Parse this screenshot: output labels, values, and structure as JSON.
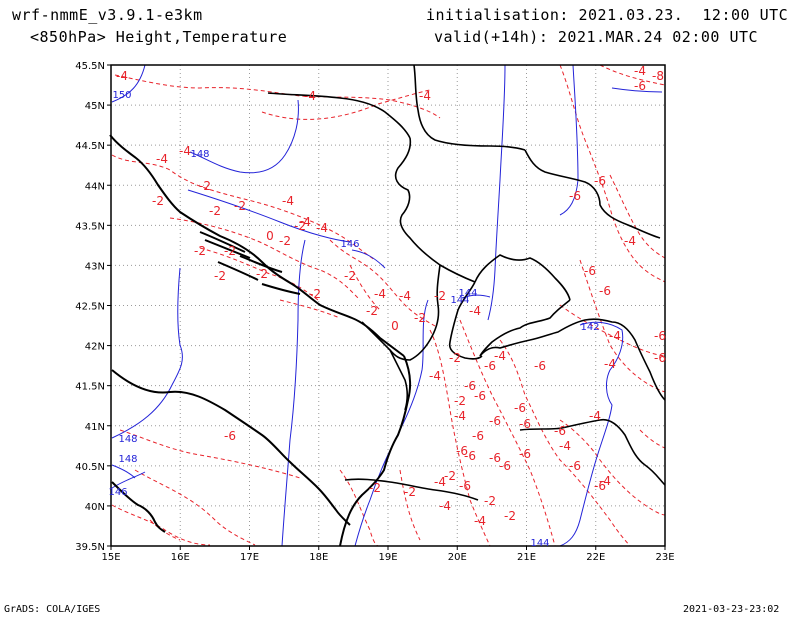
{
  "header": {
    "model": "wrf-nmmE_v3.9.1-e3km",
    "level": "<850hPa> Height,Temperature",
    "initialisation": "initialisation: 2021.03.23.  12:00 UTC",
    "valid": "valid(+14h): 2021.MAR.24 02:00 UTC"
  },
  "axes": {
    "lat_labels": [
      "45.5N",
      "45N",
      "44.5N",
      "44N",
      "43.5N",
      "43N",
      "42.5N",
      "42N",
      "41.5N",
      "41N",
      "40.5N",
      "40N",
      "39.5N"
    ],
    "lon_labels": [
      "15E",
      "16E",
      "17E",
      "18E",
      "19E",
      "20E",
      "21E",
      "22E",
      "23E"
    ]
  },
  "contour_labels": {
    "temperature": [
      "-4",
      "-4",
      "-4",
      "-4",
      "-4",
      "-2",
      "-2",
      "-2",
      "-2",
      "-4",
      "-4",
      "-2",
      "0",
      "-2",
      "-2",
      "-4",
      "-2",
      "-2",
      "-2",
      "-4",
      "-4",
      "-2",
      "0",
      "-2",
      "-2",
      "-2",
      "-2",
      "-4",
      "-6",
      "-4",
      "-2",
      "-4",
      "-6",
      "-6",
      "-2",
      "-6",
      "-4",
      "-6",
      "-6",
      "-6",
      "-6",
      "-6",
      "-6",
      "-6",
      "-6",
      "-6",
      "-6",
      "-4",
      "-6",
      "-4",
      "-4",
      "-2",
      "-2",
      "-4",
      "-2",
      "-4",
      "-2",
      "-2",
      "-4",
      "-6",
      "-6",
      "-6",
      "-4",
      "-4",
      "-6",
      "-6",
      "-4",
      "-6",
      "-4",
      "-6",
      "-8",
      "-6",
      "-6",
      "-6"
    ],
    "height": [
      "150",
      "148",
      "146",
      "144",
      "144",
      "142",
      "148",
      "148",
      "146",
      "144"
    ]
  },
  "colors": {
    "temperature": "#e8232b",
    "height": "#2323d8",
    "coast": "#000000",
    "border": "#000000",
    "grid": "#9a9a9a"
  },
  "footer": {
    "left": "GrADS: COLA/IGES",
    "right": "2021-03-23-23:02"
  }
}
